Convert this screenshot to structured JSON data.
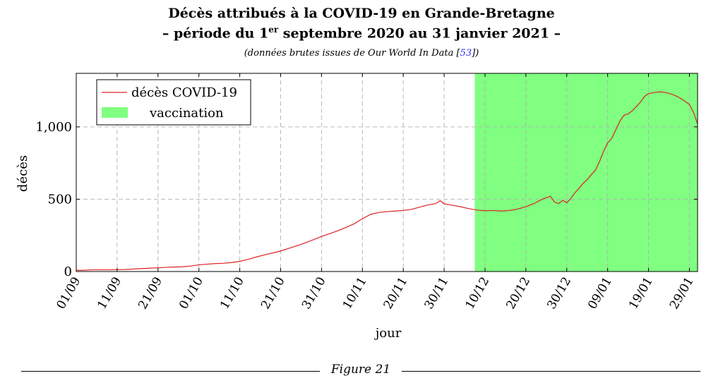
{
  "header": {
    "title_line1": "Décès attribués à la COVID-19 en Grande-Bretagne",
    "title_line2_pre": "– période du 1",
    "title_line2_sup": "er",
    "title_line2_post": " septembre 2020 au 31 janvier 2021 –",
    "subtitle_pre": "(données brutes issues de Our World In Data [",
    "subtitle_ref": "53",
    "subtitle_post": "])"
  },
  "figure_caption": "Figure 21",
  "chart_data": {
    "type": "line",
    "xlabel": "jour",
    "ylabel": "décès",
    "xlim": [
      0,
      152
    ],
    "ylim": [
      0,
      1370
    ],
    "grid": true,
    "legend_position": "top-left",
    "x_ticks": [
      {
        "x": 0,
        "label": "01/09"
      },
      {
        "x": 10,
        "label": "11/09"
      },
      {
        "x": 20,
        "label": "21/09"
      },
      {
        "x": 30,
        "label": "01/10"
      },
      {
        "x": 40,
        "label": "11/10"
      },
      {
        "x": 50,
        "label": "21/10"
      },
      {
        "x": 60,
        "label": "31/10"
      },
      {
        "x": 70,
        "label": "10/11"
      },
      {
        "x": 80,
        "label": "20/11"
      },
      {
        "x": 90,
        "label": "30/11"
      },
      {
        "x": 100,
        "label": "10/12"
      },
      {
        "x": 110,
        "label": "20/12"
      },
      {
        "x": 120,
        "label": "30/12"
      },
      {
        "x": 130,
        "label": "09/01"
      },
      {
        "x": 140,
        "label": "19/01"
      },
      {
        "x": 150,
        "label": "29/01"
      }
    ],
    "y_ticks": [
      {
        "y": 0,
        "label": "0"
      },
      {
        "y": 500,
        "label": "500"
      },
      {
        "y": 1000,
        "label": "1,000"
      }
    ],
    "vaccination_span": {
      "name": "vaccination",
      "color": "#80ff80",
      "x_start": 97.5,
      "x_end": 152
    },
    "series": [
      {
        "name": "décès COVID-19",
        "color": "#dd2222",
        "points": [
          [
            0,
            8
          ],
          [
            2,
            9
          ],
          [
            4,
            12
          ],
          [
            6,
            12
          ],
          [
            8,
            12
          ],
          [
            10,
            13
          ],
          [
            12,
            14
          ],
          [
            14,
            17
          ],
          [
            16,
            20
          ],
          [
            18,
            23
          ],
          [
            20,
            26
          ],
          [
            22,
            29
          ],
          [
            24,
            31
          ],
          [
            26,
            33
          ],
          [
            28,
            38
          ],
          [
            30,
            46
          ],
          [
            32,
            51
          ],
          [
            34,
            55
          ],
          [
            36,
            57
          ],
          [
            38,
            62
          ],
          [
            40,
            70
          ],
          [
            42,
            84
          ],
          [
            44,
            100
          ],
          [
            46,
            115
          ],
          [
            48,
            128
          ],
          [
            50,
            142
          ],
          [
            52,
            160
          ],
          [
            54,
            178
          ],
          [
            56,
            198
          ],
          [
            58,
            220
          ],
          [
            60,
            242
          ],
          [
            62,
            262
          ],
          [
            64,
            282
          ],
          [
            66,
            305
          ],
          [
            68,
            330
          ],
          [
            70,
            365
          ],
          [
            72,
            395
          ],
          [
            74,
            408
          ],
          [
            76,
            414
          ],
          [
            78,
            418
          ],
          [
            80,
            422
          ],
          [
            82,
            430
          ],
          [
            84,
            445
          ],
          [
            86,
            460
          ],
          [
            88,
            470
          ],
          [
            89,
            490
          ],
          [
            90,
            468
          ],
          [
            92,
            458
          ],
          [
            94,
            448
          ],
          [
            96,
            435
          ],
          [
            98,
            425
          ],
          [
            100,
            420
          ],
          [
            102,
            422
          ],
          [
            104,
            418
          ],
          [
            106,
            422
          ],
          [
            108,
            432
          ],
          [
            110,
            448
          ],
          [
            112,
            470
          ],
          [
            114,
            500
          ],
          [
            116,
            520
          ],
          [
            117,
            480
          ],
          [
            118,
            470
          ],
          [
            119,
            492
          ],
          [
            120,
            475
          ],
          [
            121,
            505
          ],
          [
            122,
            545
          ],
          [
            123,
            575
          ],
          [
            124,
            610
          ],
          [
            125,
            635
          ],
          [
            126,
            670
          ],
          [
            127,
            700
          ],
          [
            128,
            760
          ],
          [
            129,
            830
          ],
          [
            130,
            890
          ],
          [
            131,
            920
          ],
          [
            132,
            980
          ],
          [
            133,
            1040
          ],
          [
            134,
            1080
          ],
          [
            135,
            1090
          ],
          [
            136,
            1110
          ],
          [
            137,
            1140
          ],
          [
            138,
            1170
          ],
          [
            139,
            1210
          ],
          [
            140,
            1230
          ],
          [
            141,
            1235
          ],
          [
            142,
            1240
          ],
          [
            143,
            1242
          ],
          [
            144,
            1238
          ],
          [
            145,
            1232
          ],
          [
            146,
            1222
          ],
          [
            147,
            1210
          ],
          [
            148,
            1195
          ],
          [
            149,
            1175
          ],
          [
            150,
            1155
          ],
          [
            151,
            1100
          ],
          [
            152,
            1020
          ]
        ]
      }
    ]
  }
}
